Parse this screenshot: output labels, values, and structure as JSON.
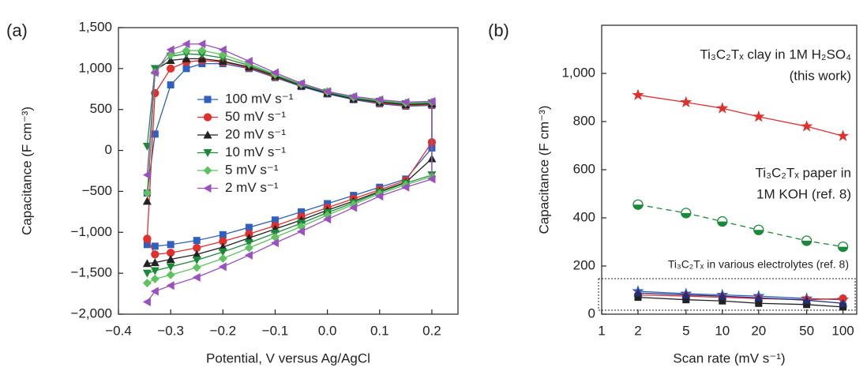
{
  "chart_data": [
    {
      "type": "line",
      "panel_label": "(a)",
      "x_label": "Potential, V versus Ag/AgCl",
      "y_label": "Capacitance (F cm⁻³)",
      "xlim": [
        -0.4,
        0.25
      ],
      "ylim": [
        -2000,
        1500
      ],
      "xticks": [
        {
          "value": -0.4,
          "label": "−0.4"
        },
        {
          "value": -0.3,
          "label": "−0.3"
        },
        {
          "value": -0.2,
          "label": "−0.2"
        },
        {
          "value": -0.1,
          "label": "−0.1"
        },
        {
          "value": 0,
          "label": "0.0"
        },
        {
          "value": 0.1,
          "label": "0.1"
        },
        {
          "value": 0.2,
          "label": "0.2"
        }
      ],
      "yticks": [
        {
          "value": -2000,
          "label": "−2,000"
        },
        {
          "value": -1500,
          "label": "−1,500"
        },
        {
          "value": -1000,
          "label": "−1,000"
        },
        {
          "value": -500,
          "label": "−500"
        },
        0,
        500,
        {
          "value": 1000,
          "label": "1,000"
        },
        {
          "value": 1500,
          "label": "1,500"
        }
      ],
      "x": [
        -0.345,
        -0.33,
        -0.3,
        -0.27,
        -0.24,
        -0.2,
        -0.15,
        -0.1,
        -0.05,
        0,
        0.05,
        0.1,
        0.15,
        0.2,
        0.2,
        0.15,
        0.1,
        0.05,
        0,
        -0.05,
        -0.1,
        -0.15,
        -0.2,
        -0.25,
        -0.3,
        -0.33,
        -0.345
      ],
      "series": [
        {
          "name": "100 mV s⁻¹",
          "color": "#2f5fbf",
          "marker": "square",
          "values": [
            -520,
            200,
            800,
            1000,
            1060,
            1060,
            1000,
            890,
            780,
            690,
            620,
            570,
            540,
            550,
            30,
            -350,
            -450,
            -550,
            -650,
            -750,
            -850,
            -940,
            -1030,
            -1100,
            -1150,
            -1170,
            -1150
          ]
        },
        {
          "name": "50 mV s⁻¹",
          "color": "#e0302e",
          "marker": "circle",
          "values": [
            -1080,
            700,
            1000,
            1080,
            1100,
            1080,
            1010,
            900,
            790,
            700,
            630,
            580,
            550,
            560,
            100,
            -370,
            -480,
            -590,
            -700,
            -810,
            -920,
            -1020,
            -1110,
            -1190,
            -1250,
            -1270,
            -1080
          ]
        },
        {
          "name": "20 mV s⁻¹",
          "color": "#222222",
          "marker": "triangle-up",
          "values": [
            -620,
            980,
            1100,
            1120,
            1120,
            1090,
            1020,
            910,
            790,
            700,
            630,
            590,
            560,
            570,
            -100,
            -390,
            -500,
            -620,
            -730,
            -850,
            -960,
            -1070,
            -1180,
            -1270,
            -1330,
            -1370,
            -1380
          ]
        },
        {
          "name": "10 mV s⁻¹",
          "color": "#1a8a3a",
          "marker": "triangle-down",
          "values": [
            50,
            1000,
            1150,
            1180,
            1170,
            1130,
            1040,
            920,
            800,
            710,
            640,
            600,
            570,
            580,
            -300,
            -400,
            -510,
            -640,
            -760,
            -890,
            -1010,
            -1130,
            -1240,
            -1340,
            -1420,
            -1470,
            -1500
          ]
        },
        {
          "name": "5 mV s⁻¹",
          "color": "#5ec35e",
          "marker": "diamond",
          "values": [
            -520,
            950,
            1170,
            1220,
            1220,
            1170,
            1060,
            930,
            810,
            720,
            650,
            610,
            580,
            590,
            -320,
            -420,
            -530,
            -660,
            -790,
            -930,
            -1060,
            -1190,
            -1320,
            -1430,
            -1520,
            -1570,
            -1620
          ]
        },
        {
          "name": "2 mV s⁻¹",
          "color": "#9b4fc0",
          "marker": "triangle-left",
          "values": [
            -300,
            950,
            1230,
            1300,
            1300,
            1230,
            1090,
            950,
            820,
            720,
            660,
            620,
            590,
            600,
            -350,
            -450,
            -560,
            -700,
            -840,
            -990,
            -1130,
            -1280,
            -1420,
            -1550,
            -1650,
            -1720,
            -1850
          ]
        }
      ]
    },
    {
      "type": "line",
      "panel_label": "(b)",
      "log_x": true,
      "x_label": "Scan rate (mV s⁻¹)",
      "y_label": "Capacitance (F cm⁻³)",
      "xlim": [
        1,
        130
      ],
      "ylim": [
        0,
        1200
      ],
      "xticks": [
        1,
        2,
        5,
        10,
        20,
        50,
        100
      ],
      "yticks": [
        0,
        200,
        400,
        600,
        800,
        {
          "value": 1000,
          "label": "1,000"
        }
      ],
      "annotations": [
        "Ti₃C₂Tₓ clay in 1M H₂SO₄",
        "(this work)",
        "Ti₃C₂Tₓ paper in",
        "1M KOH (ref. 8)",
        "Ti₃C₂Tₓ in various electrolytes (ref. 8)"
      ],
      "x": [
        2,
        5,
        10,
        20,
        50,
        100
      ],
      "series": [
        {
          "color": "#e0302e",
          "marker": "star",
          "line_style": "solid",
          "values": [
            910,
            880,
            855,
            820,
            780,
            740
          ]
        },
        {
          "color": "#1a8a3a",
          "marker": "half-circle",
          "line_style": "dashed",
          "values": [
            455,
            420,
            385,
            350,
            305,
            280
          ]
        },
        {
          "color": "#2f5fbf",
          "marker": "star",
          "line_style": "solid",
          "values": [
            95,
            85,
            80,
            75,
            65,
            60
          ]
        },
        {
          "color": "#e0302e",
          "marker": "circle",
          "line_style": "solid",
          "values": [
            80,
            75,
            70,
            65,
            60,
            65
          ]
        },
        {
          "color": "#222222",
          "marker": "square",
          "line_style": "solid",
          "values": [
            70,
            60,
            55,
            45,
            40,
            30
          ]
        },
        {
          "color": "#1f2f7a",
          "marker": "triangle-up",
          "line_style": "solid",
          "values": [
            88,
            80,
            75,
            68,
            58,
            45
          ]
        }
      ]
    }
  ]
}
